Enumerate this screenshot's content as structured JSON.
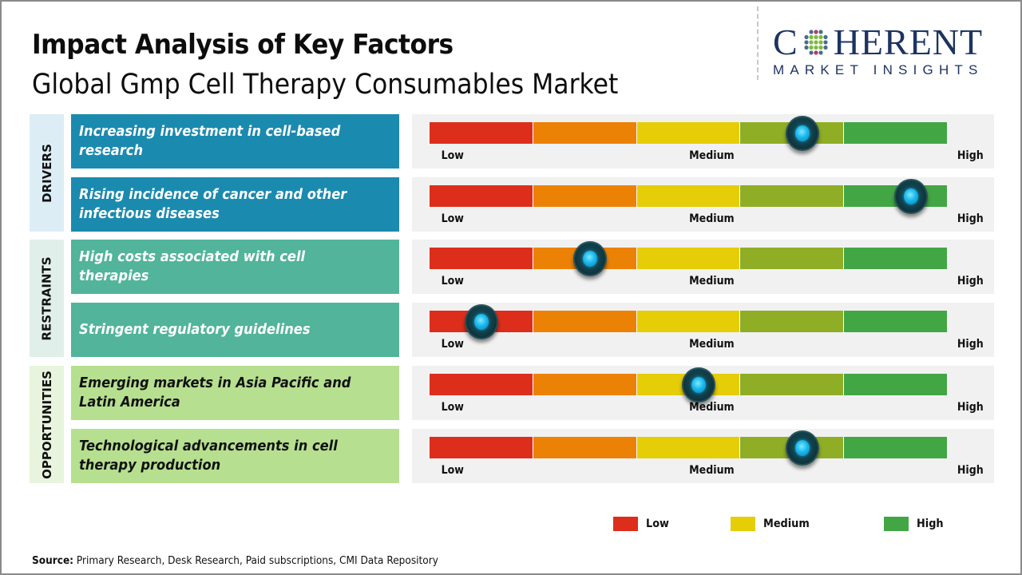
{
  "header": {
    "title": "Impact Analysis of Key Factors",
    "subtitle": "Global Gmp Cell Therapy Consumables Market"
  },
  "logo": {
    "main_prefix": "C",
    "main_suffix": "HERENT",
    "sub": "MARKET INSIGHTS",
    "icon": "globe-dots-icon"
  },
  "colors": {
    "drivers": "#1b8aaf",
    "restraints": "#52b49a",
    "opportunities": "#b6e08f",
    "segments": [
      "#dd2e1b",
      "#ec8205",
      "#e5cd07",
      "#8fae26",
      "#43a645"
    ],
    "legend_low": "#dd2e1b",
    "legend_medium": "#e5cd07",
    "legend_high": "#43a645"
  },
  "chart_data": {
    "type": "gauge",
    "title": "Impact Analysis of Key Factors",
    "scale": {
      "min_label": "Low",
      "mid_label": "Medium",
      "max_label": "High",
      "range": [
        0,
        1
      ],
      "segments": 5
    },
    "categories": [
      {
        "name": "DRIVERS",
        "factors": [
          {
            "label": "Increasing investment in cell-based research",
            "impact": 0.72
          },
          {
            "label": "Rising incidence of cancer and other infectious diseases",
            "impact": 0.93
          }
        ]
      },
      {
        "name": "RESTRAINTS",
        "factors": [
          {
            "label": "High costs associated with cell therapies",
            "impact": 0.31
          },
          {
            "label": "Stringent regulatory guidelines",
            "impact": 0.1
          }
        ]
      },
      {
        "name": "OPPORTUNITIES",
        "factors": [
          {
            "label": "Emerging markets in Asia Pacific and Latin America",
            "impact": 0.52
          },
          {
            "label": "Technological advancements in cell therapy production",
            "impact": 0.72
          }
        ]
      }
    ],
    "legend": [
      {
        "label": "Low",
        "color": "#dd2e1b"
      },
      {
        "label": "Medium",
        "color": "#e5cd07"
      },
      {
        "label": "High",
        "color": "#43a645"
      }
    ],
    "legend_position": "bottom-right"
  },
  "source": {
    "label": "Source:",
    "text": " Primary Research, Desk Research, Paid subscriptions, CMI Data Repository"
  }
}
